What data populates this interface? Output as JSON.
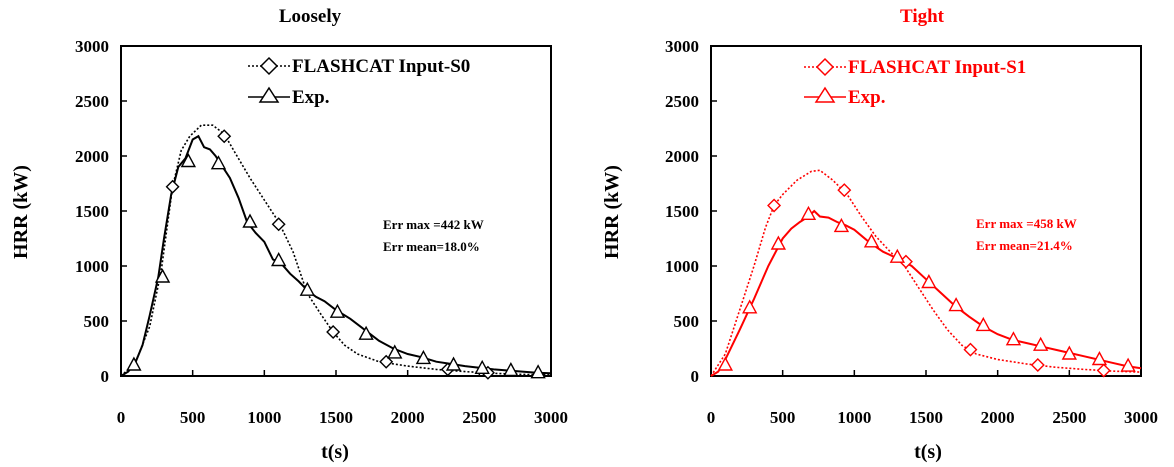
{
  "chart_data": [
    {
      "type": "line",
      "title": "Loosely",
      "title_color": "#000000",
      "color": "#000000",
      "xlabel": "t(s)",
      "ylabel": "HRR (kW)",
      "xlim": [
        0,
        3000
      ],
      "ylim": [
        0,
        3000
      ],
      "xticks": [
        0,
        500,
        1000,
        1500,
        2000,
        2500,
        3000
      ],
      "yticks": [
        0,
        500,
        1000,
        1500,
        2000,
        2500,
        3000
      ],
      "grid": false,
      "legend_position": "top-right",
      "annotations": [
        "Err max =442 kW",
        "Err mean=18.0%"
      ],
      "series": [
        {
          "name": "FLASHCAT Input-S0",
          "style": "dotted",
          "marker": "diamond",
          "x": [
            0,
            100,
            200,
            280,
            360,
            420,
            480,
            560,
            640,
            720,
            800,
            900,
            1000,
            1100,
            1200,
            1300,
            1400,
            1480,
            1560,
            1650,
            1800,
            2000,
            2200,
            2400,
            2600,
            2800,
            3000
          ],
          "y": [
            0,
            120,
            450,
            950,
            1720,
            2050,
            2180,
            2280,
            2280,
            2200,
            2020,
            1800,
            1600,
            1400,
            1130,
            750,
            550,
            400,
            280,
            200,
            130,
            90,
            60,
            40,
            25,
            15,
            10
          ],
          "marker_x": [
            360,
            720,
            1100,
            1480,
            1850,
            2280,
            2560
          ],
          "marker_y": [
            1720,
            2180,
            1380,
            400,
            130,
            60,
            30
          ]
        },
        {
          "name": "Exp.",
          "style": "solid",
          "marker": "triangle",
          "x": [
            0,
            50,
            100,
            150,
            200,
            260,
            300,
            350,
            400,
            450,
            500,
            540,
            580,
            620,
            660,
            700,
            760,
            820,
            880,
            940,
            1000,
            1060,
            1120,
            1180,
            1240,
            1300,
            1360,
            1420,
            1500,
            1600,
            1700,
            1800,
            1900,
            2000,
            2100,
            2200,
            2300,
            2400,
            2500,
            2600,
            2700,
            2800,
            2900,
            3000
          ],
          "y": [
            0,
            40,
            120,
            280,
            550,
            900,
            1250,
            1650,
            1900,
            1980,
            2150,
            2180,
            2080,
            2060,
            2000,
            1920,
            1800,
            1620,
            1400,
            1300,
            1220,
            1060,
            1020,
            930,
            860,
            780,
            720,
            680,
            600,
            520,
            420,
            320,
            250,
            200,
            170,
            130,
            110,
            90,
            75,
            60,
            50,
            40,
            30,
            25
          ],
          "marker_x": [
            90,
            290,
            470,
            680,
            900,
            1100,
            1300,
            1510,
            1710,
            1910,
            2110,
            2320,
            2520,
            2720,
            2910
          ],
          "marker_y": [
            100,
            900,
            1950,
            1930,
            1400,
            1050,
            780,
            580,
            380,
            210,
            160,
            100,
            70,
            50,
            30
          ]
        }
      ]
    },
    {
      "type": "line",
      "title": "Tight",
      "title_color": "#ff0000",
      "color": "#ff0000",
      "xlabel": "t(s)",
      "ylabel": "HRR (kW)",
      "xlim": [
        0,
        3000
      ],
      "ylim": [
        0,
        3000
      ],
      "xticks": [
        0,
        500,
        1000,
        1500,
        2000,
        2500,
        3000
      ],
      "yticks": [
        0,
        500,
        1000,
        1500,
        2000,
        2500,
        3000
      ],
      "grid": false,
      "legend_position": "top-right",
      "annotations": [
        "Err max =458 kW",
        "Err mean=21.4%"
      ],
      "series": [
        {
          "name": "FLASHCAT Input-S1",
          "style": "dotted",
          "marker": "diamond",
          "x": [
            0,
            100,
            200,
            300,
            380,
            440,
            500,
            600,
            700,
            760,
            850,
            950,
            1050,
            1150,
            1250,
            1350,
            1450,
            1550,
            1650,
            1750,
            1850,
            2000,
            2200,
            2400,
            2600,
            2800,
            3000
          ],
          "y": [
            0,
            200,
            600,
            1000,
            1350,
            1550,
            1650,
            1780,
            1860,
            1870,
            1780,
            1650,
            1450,
            1270,
            1130,
            1000,
            800,
            600,
            420,
            280,
            200,
            150,
            110,
            80,
            60,
            45,
            35
          ],
          "marker_x": [
            440,
            930,
            1360,
            1810,
            2280,
            2740
          ],
          "marker_y": [
            1550,
            1690,
            1040,
            240,
            100,
            50
          ]
        },
        {
          "name": "Exp.",
          "style": "solid",
          "marker": "triangle",
          "x": [
            0,
            50,
            100,
            200,
            300,
            400,
            500,
            560,
            620,
            680,
            720,
            760,
            820,
            880,
            940,
            1000,
            1100,
            1200,
            1300,
            1400,
            1500,
            1600,
            1700,
            1800,
            1900,
            2000,
            2100,
            2200,
            2300,
            2400,
            2500,
            2600,
            2700,
            2800,
            2900,
            3000
          ],
          "y": [
            0,
            40,
            150,
            420,
            700,
            1000,
            1250,
            1340,
            1400,
            1450,
            1500,
            1450,
            1440,
            1400,
            1370,
            1330,
            1220,
            1130,
            1070,
            1000,
            880,
            760,
            640,
            540,
            450,
            380,
            330,
            300,
            270,
            240,
            210,
            180,
            150,
            120,
            90,
            70
          ],
          "marker_x": [
            100,
            270,
            470,
            680,
            910,
            1120,
            1300,
            1520,
            1710,
            1900,
            2110,
            2300,
            2500,
            2710,
            2910
          ],
          "marker_y": [
            100,
            620,
            1200,
            1470,
            1360,
            1220,
            1080,
            850,
            640,
            460,
            330,
            280,
            200,
            150,
            90
          ]
        }
      ]
    }
  ]
}
